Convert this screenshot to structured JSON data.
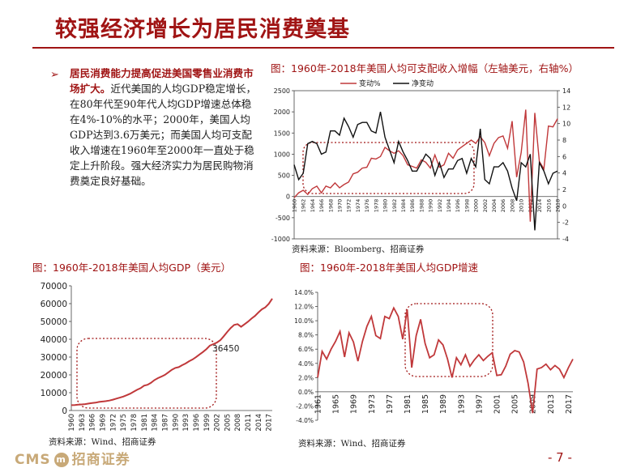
{
  "page": {
    "title": "较强经济增长为居民消费奠基",
    "bullet_mark": "➢",
    "bullet_lead": "居民消费能力提高促进美国零售业消费市场扩大。",
    "bullet_body": "近代美国的人均GDP稳定增长，在80年代至90年代人均GDP增速总体稳在4%-10%的水平；2000年，美国人均GDP达到3.6万美元；而美国人均可支配收入增速在1960年至2000年一直处于稳定上升阶段。强大经济实力为居民购物消费奠定良好基础。",
    "footer_logo_left": "CMS",
    "footer_logo_badge": "m",
    "footer_logo_right": "招商证券",
    "page_number": "- 7 -",
    "colors": {
      "accent": "#a01414",
      "line_red": "#c0383a",
      "line_black": "#111111",
      "box": "#a01414"
    }
  },
  "chart_data": [
    {
      "id": "income",
      "type": "line",
      "title": "图：1960年-2018年美国人均可支配收入增幅（左轴美元，右轴%）",
      "source": "资料来源：Bloomberg、招商证券",
      "x": [
        1960,
        1961,
        1962,
        1963,
        1964,
        1965,
        1966,
        1967,
        1968,
        1969,
        1970,
        1971,
        1972,
        1973,
        1974,
        1975,
        1976,
        1977,
        1978,
        1979,
        1980,
        1981,
        1982,
        1983,
        1984,
        1985,
        1986,
        1987,
        1988,
        1989,
        1990,
        1991,
        1992,
        1993,
        1994,
        1995,
        1996,
        1997,
        1998,
        1999,
        2000,
        2001,
        2002,
        2003,
        2004,
        2005,
        2006,
        2007,
        2008,
        2009,
        2010,
        2011,
        2012,
        2013,
        2014,
        2015,
        2016,
        2017,
        2018
      ],
      "x_tick_labels": [
        "1960",
        "1962",
        "1964",
        "1966",
        "1968",
        "1970",
        "1972",
        "1974",
        "1976",
        "1978",
        "1980",
        "1982",
        "1984",
        "1986",
        "1988",
        "1990",
        "1992",
        "1994",
        "1996",
        "1998",
        "2000",
        "2002",
        "2004",
        "2006",
        "2008",
        "2010",
        "2012",
        "2014",
        "2016",
        "2018"
      ],
      "ylim_left": [
        -1000,
        2500
      ],
      "yticks_left": [
        "-1000",
        "-500",
        "0",
        "500",
        "1000",
        "1500",
        "2000",
        "2500"
      ],
      "ylim_right": [
        -4,
        14
      ],
      "yticks_right": [
        "-4",
        "-2",
        "0",
        "2",
        "4",
        "6",
        "8",
        "10",
        "12",
        "14"
      ],
      "legend": [
        "变动%",
        "净变动"
      ],
      "series": [
        {
          "name": "变动%",
          "axis": "right",
          "values": [
            1.0,
            1.6,
            1.9,
            1.4,
            2.1,
            2.4,
            1.6,
            2.4,
            2.2,
            2.8,
            2.2,
            2.6,
            2.9,
            3.9,
            4.1,
            4.6,
            4.7,
            5.8,
            5.7,
            6.0,
            7.1,
            6.7,
            6.4,
            6.7,
            6.1,
            5.0,
            4.8,
            4.6,
            5.6,
            5.3,
            4.6,
            6.2,
            4.7,
            5.0,
            6.4,
            5.8,
            6.8,
            7.2,
            7.6,
            8.0,
            7.6,
            8.4,
            7.7,
            6.1,
            7.6,
            8.3,
            8.5,
            7.0,
            10.3,
            3.5,
            6.5,
            11.7,
            -1.9,
            11.3,
            5.4,
            4.5,
            9.7,
            9.6,
            10.6
          ]
        },
        {
          "name": "净变动",
          "axis": "left",
          "values": [
            750,
            400,
            550,
            1250,
            1300,
            1250,
            1000,
            1050,
            1550,
            1550,
            1450,
            1850,
            1650,
            1400,
            1700,
            1750,
            1750,
            1550,
            1500,
            2000,
            1400,
            1100,
            800,
            1300,
            1050,
            850,
            600,
            600,
            800,
            1000,
            900,
            500,
            800,
            450,
            650,
            650,
            850,
            900,
            550,
            900,
            700,
            1600,
            400,
            300,
            700,
            700,
            800,
            600,
            200,
            -100,
            800,
            700,
            1000,
            -800,
            800,
            600,
            300,
            550,
            600
          ]
        }
      ]
    },
    {
      "id": "gdp",
      "type": "line",
      "title": "图：1960年-2018年美国人均GDP（美元）",
      "source": "资料来源：Wind、招商证券",
      "x": [
        1960,
        1961,
        1962,
        1963,
        1964,
        1965,
        1966,
        1967,
        1968,
        1969,
        1970,
        1971,
        1972,
        1973,
        1974,
        1975,
        1976,
        1977,
        1978,
        1979,
        1980,
        1981,
        1982,
        1983,
        1984,
        1985,
        1986,
        1987,
        1988,
        1989,
        1990,
        1991,
        1992,
        1993,
        1994,
        1995,
        1996,
        1997,
        1998,
        1999,
        2000,
        2001,
        2002,
        2003,
        2004,
        2005,
        2006,
        2007,
        2008,
        2009,
        2010,
        2011,
        2012,
        2013,
        2014,
        2015,
        2016,
        2017,
        2018
      ],
      "x_tick_labels": [
        "1960",
        "1963",
        "1966",
        "1969",
        "1972",
        "1975",
        "1978",
        "1981",
        "1984",
        "1987",
        "1990",
        "1993",
        "1996",
        "1999",
        "2002",
        "2005",
        "2008",
        "2011",
        "2014",
        "2017"
      ],
      "ylim": [
        0,
        70000
      ],
      "yticks": [
        "0",
        "10000",
        "20000",
        "30000",
        "40000",
        "50000",
        "60000",
        "70000"
      ],
      "annotation": {
        "label": "36450",
        "year": 2000,
        "value": 36450
      },
      "series": [
        {
          "name": "",
          "values": [
            3000,
            3100,
            3250,
            3400,
            3600,
            3900,
            4200,
            4400,
            4800,
            5050,
            5250,
            5600,
            6100,
            6700,
            7250,
            7800,
            8600,
            9450,
            10550,
            11650,
            12550,
            13950,
            14450,
            15550,
            17100,
            18200,
            19050,
            20000,
            21400,
            22850,
            23900,
            24350,
            25450,
            26400,
            27700,
            28700,
            29950,
            31450,
            32850,
            34500,
            36450,
            37250,
            38150,
            39500,
            41700,
            44100,
            46300,
            48050,
            48500,
            47000,
            48450,
            49900,
            51600,
            53100,
            55050,
            56800,
            57900,
            59900,
            62800
          ]
        }
      ]
    },
    {
      "id": "gdp_growth",
      "type": "line",
      "title": "图：1960年-2018年美国人均GDP增速",
      "source": "资料来源：Wind、招商证券",
      "x": [
        1961,
        1962,
        1963,
        1964,
        1965,
        1966,
        1967,
        1968,
        1969,
        1970,
        1971,
        1972,
        1973,
        1974,
        1975,
        1976,
        1977,
        1978,
        1979,
        1980,
        1981,
        1982,
        1983,
        1984,
        1985,
        1986,
        1987,
        1988,
        1989,
        1990,
        1991,
        1992,
        1993,
        1994,
        1995,
        1996,
        1997,
        1998,
        1999,
        2000,
        2001,
        2002,
        2003,
        2004,
        2005,
        2006,
        2007,
        2008,
        2009,
        2010,
        2011,
        2012,
        2013,
        2014,
        2015,
        2016,
        2017,
        2018
      ],
      "x_tick_labels": [
        "1961",
        "1965",
        "1969",
        "1973",
        "1977",
        "1981",
        "1985",
        "1989",
        "1993",
        "1997",
        "2001",
        "2005",
        "2009",
        "2013",
        "2017"
      ],
      "ylim": [
        -4,
        14
      ],
      "yticks": [
        "-4.0%",
        "-2.0%",
        "0.0%",
        "2.0%",
        "4.0%",
        "6.0%",
        "8.0%",
        "10.0%",
        "12.0%",
        "14.0%"
      ],
      "series": [
        {
          "name": "",
          "values": [
            2.0,
            5.7,
            4.6,
            6.0,
            7.1,
            8.5,
            4.9,
            8.3,
            7.0,
            4.3,
            7.1,
            9.2,
            10.6,
            7.9,
            7.5,
            10.6,
            10.3,
            11.8,
            10.6,
            7.4,
            11.6,
            3.4,
            7.9,
            10.2,
            6.8,
            4.8,
            5.2,
            7.3,
            6.6,
            4.6,
            2.0,
            4.8,
            3.8,
            5.2,
            3.6,
            4.5,
            5.2,
            4.4,
            5.0,
            5.5,
            2.3,
            2.4,
            3.6,
            5.3,
            5.8,
            5.6,
            4.2,
            1.2,
            -3.0,
            3.2,
            3.4,
            3.9,
            3.1,
            3.7,
            3.2,
            2.0,
            3.4,
            4.6
          ]
        }
      ]
    }
  ]
}
